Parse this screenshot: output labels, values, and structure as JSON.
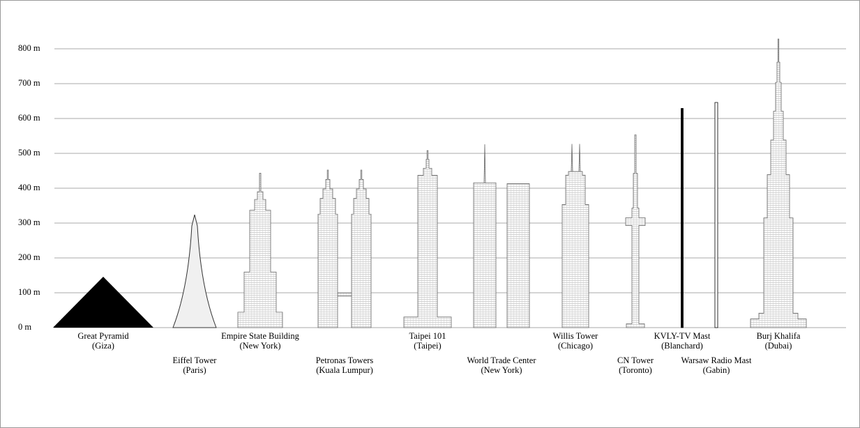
{
  "chart_data": {
    "type": "structures",
    "categories": [
      "Great Pyramid",
      "Eiffel Tower",
      "Empire State Building",
      "Petronas Towers",
      "Taipei 101",
      "World Trade Center",
      "Willis Tower",
      "CN Tower",
      "KVLY-TV Mast",
      "Warsaw Radio Mast",
      "Burj Khalifa"
    ],
    "locations": [
      "(Giza)",
      "(Paris)",
      "(New York)",
      "(Kuala Lumpur)",
      "(Taipei)",
      "(New York)",
      "(Chicago)",
      "(Toronto)",
      "(Blanchard)",
      "(Gabin)",
      "(Dubai)"
    ],
    "values": [
      146,
      324,
      443,
      452,
      508,
      526,
      527,
      553,
      629,
      646,
      828
    ],
    "ylim": [
      0,
      800
    ],
    "yticks": [
      {
        "value": 0,
        "label": "0 m"
      },
      {
        "value": 100,
        "label": "100 m"
      },
      {
        "value": 200,
        "label": "200 m"
      },
      {
        "value": 300,
        "label": "300 m"
      },
      {
        "value": 400,
        "label": "400 m"
      },
      {
        "value": 500,
        "label": "500 m"
      },
      {
        "value": 600,
        "label": "600 m"
      },
      {
        "value": 700,
        "label": "700 m"
      },
      {
        "value": 800,
        "label": "800 m"
      }
    ],
    "grid": true
  }
}
